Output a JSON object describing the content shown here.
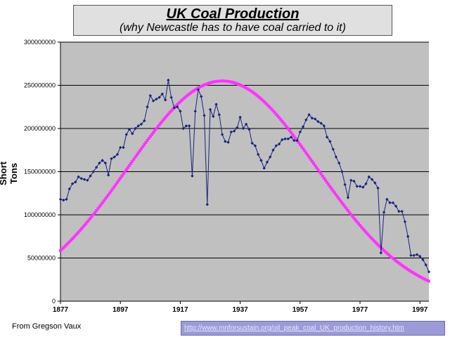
{
  "header": {
    "title": "UK Coal Production",
    "subtitle": "(why Newcastle has to have coal carried to it)"
  },
  "footer": {
    "credit": "From Gregson Vaux",
    "link": "http://www.mnforsustain.org/oil_peak_coal_UK_production_history.htm"
  },
  "colors": {
    "plot_bg": "#c0c0c0",
    "actual": "#1a237e",
    "fit": "#ff33ff"
  },
  "chart_data": {
    "type": "line",
    "title": "UK Coal Production",
    "subtitle": "(why Newcastle has to have coal carried to it)",
    "xlabel": "",
    "ylabel": "Short Tons",
    "xlim": [
      1877,
      2000
    ],
    "ylim": [
      0,
      300000000
    ],
    "x_ticks": [
      1877,
      1897,
      1917,
      1937,
      1957,
      1977,
      1997
    ],
    "y_ticks": [
      0,
      50000000,
      100000000,
      150000000,
      200000000,
      250000000,
      300000000
    ],
    "grid": "horizontal",
    "legend": "none",
    "series": [
      {
        "name": "",
        "style": "line-with-diamond-markers",
        "x": [
          1877,
          1878,
          1879,
          1880,
          1881,
          1882,
          1883,
          1884,
          1885,
          1886,
          1887,
          1888,
          1889,
          1890,
          1891,
          1892,
          1893,
          1894,
          1895,
          1896,
          1897,
          1898,
          1899,
          1900,
          1901,
          1902,
          1903,
          1904,
          1905,
          1906,
          1907,
          1908,
          1909,
          1910,
          1911,
          1912,
          1913,
          1914,
          1915,
          1916,
          1917,
          1918,
          1919,
          1920,
          1921,
          1922,
          1923,
          1924,
          1925,
          1926,
          1927,
          1928,
          1929,
          1930,
          1931,
          1932,
          1933,
          1934,
          1935,
          1936,
          1937,
          1938,
          1939,
          1940,
          1941,
          1942,
          1943,
          1944,
          1945,
          1946,
          1947,
          1948,
          1949,
          1950,
          1951,
          1952,
          1953,
          1954,
          1955,
          1956,
          1957,
          1958,
          1959,
          1960,
          1961,
          1962,
          1963,
          1964,
          1965,
          1966,
          1967,
          1968,
          1969,
          1970,
          1971,
          1972,
          1973,
          1974,
          1975,
          1976,
          1977,
          1978,
          1979,
          1980,
          1981,
          1982,
          1983,
          1984,
          1985,
          1986,
          1987,
          1988,
          1989,
          1990,
          1991,
          1992,
          1993,
          1994,
          1995,
          1996,
          1997,
          1998,
          1999,
          2000
        ],
        "y": [
          118000000,
          117000000,
          118000000,
          130000000,
          136000000,
          138000000,
          144000000,
          142000000,
          141000000,
          140000000,
          145000000,
          150000000,
          155000000,
          160000000,
          163000000,
          160000000,
          146000000,
          165000000,
          167000000,
          170000000,
          178000000,
          178000000,
          193000000,
          199000000,
          194000000,
          200000000,
          203000000,
          205000000,
          209000000,
          225000000,
          238000000,
          232000000,
          234000000,
          236000000,
          240000000,
          233000000,
          256000000,
          236000000,
          224000000,
          225000000,
          220000000,
          200000000,
          203000000,
          203000000,
          145000000,
          220000000,
          245000000,
          237000000,
          215000000,
          112000000,
          222000000,
          214000000,
          228000000,
          216000000,
          193000000,
          185000000,
          184000000,
          196000000,
          197000000,
          201000000,
          213000000,
          200000000,
          205000000,
          199000000,
          183000000,
          180000000,
          170000000,
          163000000,
          154000000,
          161000000,
          167000000,
          175000000,
          180000000,
          182000000,
          187000000,
          188000000,
          188000000,
          190000000,
          186000000,
          186000000,
          196000000,
          202000000,
          210000000,
          216000000,
          212000000,
          211000000,
          208000000,
          206000000,
          203000000,
          190000000,
          185000000,
          176000000,
          167000000,
          160000000,
          150000000,
          135000000,
          120000000,
          140000000,
          139000000,
          133000000,
          133000000,
          132000000,
          136000000,
          144000000,
          141000000,
          137000000,
          131000000,
          56000000,
          103000000,
          118000000,
          114000000,
          114000000,
          110000000,
          104000000,
          104000000,
          92000000,
          75000000,
          53000000,
          53000000,
          54000000,
          52000000,
          48000000,
          42000000,
          34000000
        ]
      },
      {
        "name": "",
        "style": "bell-curve-square-markers",
        "peak_x": 1931,
        "peak_y": 255000000,
        "width_sd": 31.5,
        "x_start": 1877,
        "x_end": 2000
      }
    ]
  }
}
